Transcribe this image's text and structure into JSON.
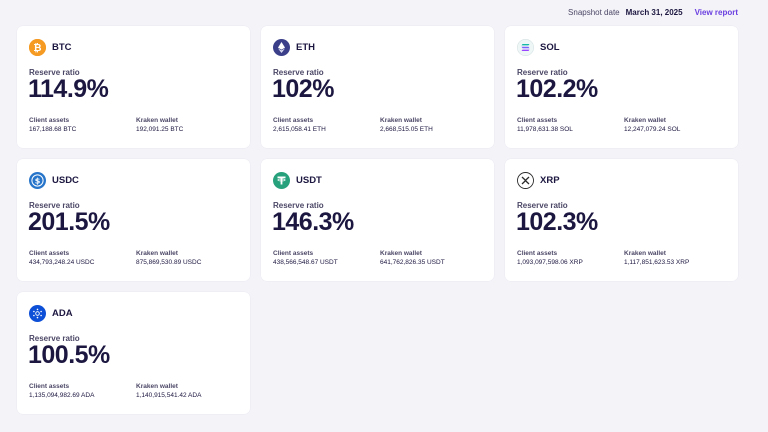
{
  "header": {
    "snapshot_label": "Snapshot date",
    "snapshot_date": "March 31, 2025",
    "view_report": "View report"
  },
  "labels": {
    "reserve_ratio": "Reserve ratio",
    "client_assets": "Client assets",
    "kraken_wallet": "Kraken wallet"
  },
  "assets": [
    {
      "symbol": "BTC",
      "icon": "bitcoin-icon",
      "icon_color": "#f59a23",
      "ratio": "114.9%",
      "client_assets": "167,188.68 BTC",
      "kraken_wallet": "192,091.25 BTC"
    },
    {
      "symbol": "ETH",
      "icon": "ethereum-icon",
      "icon_color": "#3b3f8a",
      "ratio": "102%",
      "client_assets": "2,615,058.41 ETH",
      "kraken_wallet": "2,668,515.05 ETH"
    },
    {
      "symbol": "SOL",
      "icon": "solana-icon",
      "icon_color": "#e8f3f3",
      "ratio": "102.2%",
      "client_assets": "11,978,631.38 SOL",
      "kraken_wallet": "12,247,079.24 SOL"
    },
    {
      "symbol": "USDC",
      "icon": "usdc-icon",
      "icon_color": "#2775ca",
      "ratio": "201.5%",
      "client_assets": "434,793,248.24 USDC",
      "kraken_wallet": "875,869,530.89 USDC"
    },
    {
      "symbol": "USDT",
      "icon": "tether-icon",
      "icon_color": "#26a17b",
      "ratio": "146.3%",
      "client_assets": "438,566,548.67 USDT",
      "kraken_wallet": "641,762,826.35 USDT"
    },
    {
      "symbol": "XRP",
      "icon": "xrp-icon",
      "icon_color": "#ffffff",
      "ratio": "102.3%",
      "client_assets": "1,093,097,598.06 XRP",
      "kraken_wallet": "1,117,851,623.53 XRP"
    },
    {
      "symbol": "ADA",
      "icon": "cardano-icon",
      "icon_color": "#0d4fd6",
      "ratio": "100.5%",
      "client_assets": "1,135,094,982.69 ADA",
      "kraken_wallet": "1,140,915,541.42 ADA"
    }
  ]
}
